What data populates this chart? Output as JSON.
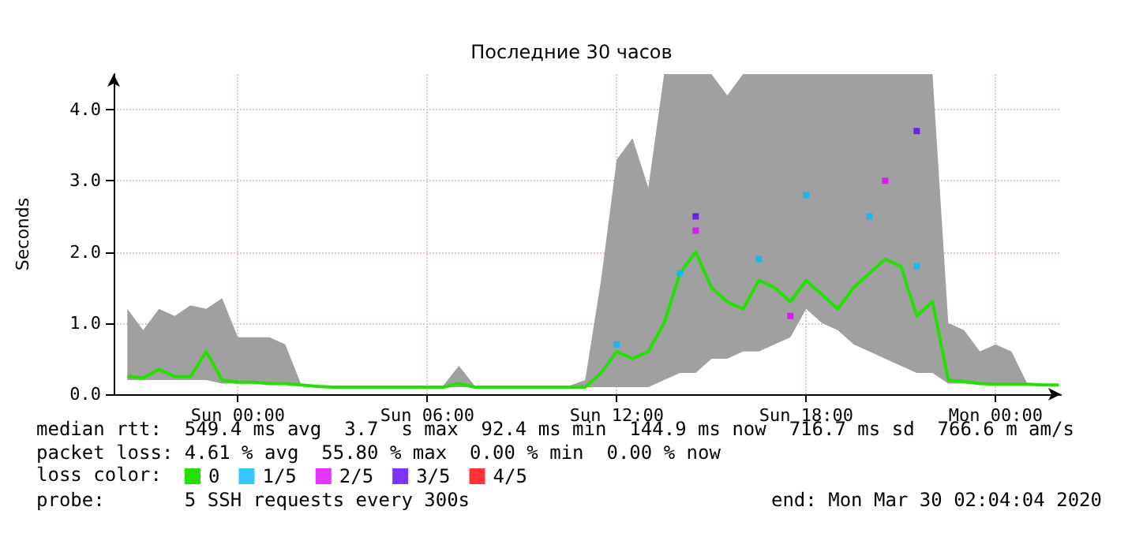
{
  "chart_data": {
    "type": "line",
    "title": "Последние 30 часов",
    "ylabel": "Seconds",
    "x": [
      "2020-03-28T20:30",
      "2020-03-28T21:00",
      "2020-03-28T21:30",
      "2020-03-28T22:00",
      "2020-03-28T22:30",
      "2020-03-28T23:00",
      "2020-03-28T23:30",
      "2020-03-29T00:00",
      "2020-03-29T00:30",
      "2020-03-29T01:00",
      "2020-03-29T01:30",
      "2020-03-29T02:00",
      "2020-03-29T02:30",
      "2020-03-29T03:00",
      "2020-03-29T03:30",
      "2020-03-29T04:00",
      "2020-03-29T04:30",
      "2020-03-29T05:00",
      "2020-03-29T05:30",
      "2020-03-29T06:00",
      "2020-03-29T06:30",
      "2020-03-29T07:00",
      "2020-03-29T07:30",
      "2020-03-29T08:00",
      "2020-03-29T08:30",
      "2020-03-29T09:00",
      "2020-03-29T09:30",
      "2020-03-29T10:00",
      "2020-03-29T10:30",
      "2020-03-29T11:00",
      "2020-03-29T11:30",
      "2020-03-29T12:00",
      "2020-03-29T12:30",
      "2020-03-29T13:00",
      "2020-03-29T13:30",
      "2020-03-29T14:00",
      "2020-03-29T14:30",
      "2020-03-29T15:00",
      "2020-03-29T15:30",
      "2020-03-29T16:00",
      "2020-03-29T16:30",
      "2020-03-29T17:00",
      "2020-03-29T17:30",
      "2020-03-29T18:00",
      "2020-03-29T18:30",
      "2020-03-29T19:00",
      "2020-03-29T19:30",
      "2020-03-29T20:00",
      "2020-03-29T20:30",
      "2020-03-29T21:00",
      "2020-03-29T21:30",
      "2020-03-29T22:00",
      "2020-03-29T22:30",
      "2020-03-29T23:00",
      "2020-03-29T23:30",
      "2020-03-30T00:00",
      "2020-03-30T00:30",
      "2020-03-30T01:00",
      "2020-03-30T01:30",
      "2020-03-30T02:00"
    ],
    "series": [
      {
        "name": "0",
        "color": "#22e000",
        "values": [
          0.25,
          0.23,
          0.35,
          0.25,
          0.25,
          0.6,
          0.2,
          0.17,
          0.17,
          0.15,
          0.15,
          0.13,
          0.11,
          0.1,
          0.1,
          0.1,
          0.1,
          0.1,
          0.1,
          0.1,
          0.1,
          0.15,
          0.1,
          0.1,
          0.1,
          0.1,
          0.1,
          0.1,
          0.1,
          0.1,
          0.3,
          0.6,
          0.5,
          0.6,
          1.0,
          1.7,
          2.0,
          1.5,
          1.3,
          1.2,
          1.6,
          1.5,
          1.3,
          1.6,
          1.4,
          1.2,
          1.5,
          1.7,
          1.9,
          1.8,
          1.1,
          1.3,
          0.2,
          0.18,
          0.15,
          0.14,
          0.14,
          0.14,
          0.13,
          0.13
        ],
        "lower": [
          0.2,
          0.2,
          0.2,
          0.2,
          0.2,
          0.2,
          0.15,
          0.15,
          0.15,
          0.14,
          0.14,
          0.12,
          0.1,
          0.1,
          0.1,
          0.1,
          0.1,
          0.1,
          0.1,
          0.1,
          0.1,
          0.1,
          0.1,
          0.1,
          0.1,
          0.1,
          0.1,
          0.1,
          0.1,
          0.1,
          0.1,
          0.1,
          0.1,
          0.1,
          0.2,
          0.3,
          0.3,
          0.5,
          0.5,
          0.6,
          0.6,
          0.7,
          0.8,
          1.2,
          1.0,
          0.9,
          0.7,
          0.6,
          0.5,
          0.4,
          0.3,
          0.3,
          0.15,
          0.15,
          0.14,
          0.13,
          0.13,
          0.13,
          0.12,
          0.12
        ],
        "upper": [
          1.2,
          0.9,
          1.2,
          1.1,
          1.25,
          1.2,
          1.35,
          0.8,
          0.8,
          0.8,
          0.7,
          0.14,
          0.12,
          0.12,
          0.12,
          0.12,
          0.12,
          0.12,
          0.12,
          0.12,
          0.12,
          0.4,
          0.12,
          0.12,
          0.12,
          0.12,
          0.12,
          0.12,
          0.12,
          0.2,
          1.6,
          3.3,
          3.6,
          2.9,
          4.5,
          4.5,
          4.5,
          4.5,
          4.2,
          4.5,
          4.5,
          4.5,
          4.5,
          4.5,
          4.5,
          4.5,
          4.5,
          4.5,
          4.5,
          4.5,
          4.5,
          4.5,
          1.0,
          0.9,
          0.6,
          0.7,
          0.6,
          0.15,
          0.14,
          0.14
        ]
      },
      {
        "name": "1/5",
        "type": "scatter",
        "color": "#00b8ff",
        "x": [
          "2020-03-29T12:00",
          "2020-03-29T14:00",
          "2020-03-29T16:30",
          "2020-03-29T18:00",
          "2020-03-29T20:00",
          "2020-03-29T21:30"
        ],
        "values": [
          0.7,
          1.7,
          1.9,
          2.8,
          2.5,
          1.8
        ]
      },
      {
        "name": "2/5",
        "type": "scatter",
        "color": "#dd00ff",
        "x": [
          "2020-03-29T14:30",
          "2020-03-29T17:30",
          "2020-03-29T20:30"
        ],
        "values": [
          2.3,
          1.1,
          3.0
        ]
      },
      {
        "name": "3/5",
        "type": "scatter",
        "color": "#6000ff",
        "x": [
          "2020-03-29T14:30",
          "2020-03-29T21:30"
        ],
        "values": [
          2.5,
          3.7
        ]
      },
      {
        "name": "4/5",
        "type": "scatter",
        "color": "#ff0000",
        "values": [
          null,
          null,
          null,
          null,
          null,
          null,
          null,
          null,
          null,
          null,
          null,
          null,
          null,
          null,
          null,
          null,
          null,
          null,
          null,
          null,
          null,
          null,
          null,
          null,
          null,
          null,
          null,
          null,
          null,
          null,
          null,
          null,
          null,
          null,
          null,
          null,
          null,
          null,
          null,
          null,
          null,
          null,
          null,
          null,
          null,
          null,
          null,
          null,
          null,
          null,
          null,
          null,
          null,
          null,
          null,
          null,
          null,
          null,
          null,
          null
        ]
      }
    ],
    "xlim": [
      "2020-03-28T20:04",
      "2020-03-30T02:04"
    ],
    "xticks": [
      {
        "value": "2020-03-29T00:00",
        "label": "Sun 00:00"
      },
      {
        "value": "2020-03-29T06:00",
        "label": "Sun 06:00"
      },
      {
        "value": "2020-03-29T12:00",
        "label": "Sun 12:00"
      },
      {
        "value": "2020-03-29T18:00",
        "label": "Sun 18:00"
      },
      {
        "value": "2020-03-30T00:00",
        "label": "Mon 00:00"
      }
    ],
    "ylim": [
      0,
      4.5
    ],
    "yticks": [
      {
        "value": 0,
        "label": "0.0"
      },
      {
        "value": 1,
        "label": "1.0"
      },
      {
        "value": 2,
        "label": "2.0"
      },
      {
        "value": 3,
        "label": "3.0"
      },
      {
        "value": 4,
        "label": "4.0"
      }
    ],
    "grid": true,
    "legend": "bottom left",
    "legend_title": "loss color:",
    "annotations": [
      "median rtt:  549.4 ms avg  3.7  s max  92.4 ms min  144.9 ms now  716.7 ms sd  766.6 m am/s",
      "packet loss: 4.61 % avg  55.80 % max  0.00 % min  0.00 % now",
      "probe:       5 SSH requests every 300s",
      "end: Mon Mar 30 02:04:04 2020"
    ]
  }
}
